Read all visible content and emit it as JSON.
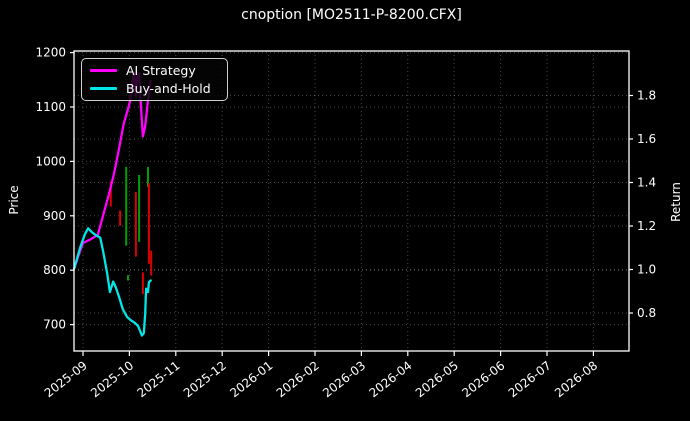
{
  "title": "cnoption [MO2511-P-8200.CFX]",
  "axes": {
    "left": {
      "label": "Price",
      "ticks": [
        1200,
        1100,
        1000,
        900,
        800,
        700
      ]
    },
    "right": {
      "label": "Return",
      "ticks": [
        1.8,
        1.6,
        1.4,
        1.2,
        1.0,
        0.8
      ]
    },
    "bottom": {
      "ticks": [
        "2025-09",
        "2025-10",
        "2025-11",
        "2025-12",
        "2026-01",
        "2026-02",
        "2026-03",
        "2026-04",
        "2026-05",
        "2026-06",
        "2026-07",
        "2026-08"
      ]
    }
  },
  "legend": {
    "items": [
      {
        "label": "AI Strategy",
        "color": "#ff00ff"
      },
      {
        "label": "Buy-and-Hold",
        "color": "#00e5e5"
      }
    ]
  },
  "colors": {
    "background": "#000000",
    "text": "#ffffff",
    "spine": "#ffffff",
    "grid": "#9a9a9a",
    "ai_line": "#ff00ff",
    "bh_line": "#00e5e5",
    "buy_signal": "#00a000",
    "sell_signal": "#dd0000"
  },
  "chart_data": {
    "type": "line",
    "title": "cnoption [MO2511-P-8200.CFX]",
    "ylabel": "Price",
    "y2label": "Return",
    "ylim": [
      652,
      1203
    ],
    "y2lim": [
      0.63,
      2.0
    ],
    "x_unit": "months after 2025-09 tick",
    "xlim": [
      -0.19,
      11.77
    ],
    "x_tick_values": [
      0,
      1,
      2,
      3,
      4,
      5,
      6,
      7,
      8,
      9,
      10,
      11
    ],
    "x_tick_labels": [
      "2025-09",
      "2025-10",
      "2025-11",
      "2025-12",
      "2026-01",
      "2026-02",
      "2026-03",
      "2026-04",
      "2026-05",
      "2026-06",
      "2026-07",
      "2026-08"
    ],
    "grid": "dotted, both y-axes and x",
    "legend_position": "upper left",
    "series": [
      {
        "name": "AI Strategy",
        "color": "#ff00ff",
        "axis": "price",
        "points": [
          [
            -0.19,
            803
          ],
          [
            -0.11,
            824
          ],
          [
            0.0,
            850
          ],
          [
            0.17,
            857
          ],
          [
            0.32,
            865
          ],
          [
            0.43,
            900
          ],
          [
            0.56,
            940
          ],
          [
            0.67,
            978
          ],
          [
            0.78,
            1025
          ],
          [
            0.88,
            1070
          ],
          [
            0.97,
            1096
          ],
          [
            1.01,
            1110
          ],
          [
            1.06,
            1145
          ],
          [
            1.1,
            1163
          ],
          [
            1.14,
            1120
          ],
          [
            1.16,
            1150
          ],
          [
            1.21,
            1162
          ],
          [
            1.25,
            1100
          ],
          [
            1.29,
            1046
          ],
          [
            1.34,
            1065
          ],
          [
            1.38,
            1095
          ],
          [
            1.42,
            1130
          ],
          [
            1.46,
            1148
          ]
        ]
      },
      {
        "name": "Buy-and-Hold",
        "color": "#00e5e5",
        "axis": "price",
        "points": [
          [
            -0.19,
            803
          ],
          [
            -0.06,
            842
          ],
          [
            0.04,
            866
          ],
          [
            0.11,
            877
          ],
          [
            0.19,
            870
          ],
          [
            0.3,
            863
          ],
          [
            0.37,
            860
          ],
          [
            0.43,
            836
          ],
          [
            0.52,
            795
          ],
          [
            0.58,
            760
          ],
          [
            0.65,
            779
          ],
          [
            0.71,
            768
          ],
          [
            0.78,
            750
          ],
          [
            0.86,
            728
          ],
          [
            0.95,
            714
          ],
          [
            1.03,
            708
          ],
          [
            1.12,
            703
          ],
          [
            1.19,
            697
          ],
          [
            1.23,
            688
          ],
          [
            1.27,
            680
          ],
          [
            1.31,
            684
          ],
          [
            1.34,
            720
          ],
          [
            1.36,
            766
          ],
          [
            1.4,
            760
          ],
          [
            1.42,
            778
          ],
          [
            1.46,
            781
          ]
        ]
      }
    ],
    "signal_bars": [
      {
        "t": 0.6,
        "price_low": 917,
        "price_high": 963,
        "kind": "sell",
        "color": "#dd0000"
      },
      {
        "t": 0.8,
        "price_low": 882,
        "price_high": 910,
        "kind": "sell",
        "color": "#dd0000"
      },
      {
        "t": 0.93,
        "price_low": 845,
        "price_high": 990,
        "kind": "buy",
        "color": "#00a000"
      },
      {
        "t": 0.97,
        "price_low": 781,
        "price_high": 791,
        "kind": "buy",
        "color": "#00a000"
      },
      {
        "t": 1.14,
        "price_low": 825,
        "price_high": 944,
        "kind": "sell",
        "color": "#dd0000"
      },
      {
        "t": 1.21,
        "price_low": 852,
        "price_high": 975,
        "kind": "buy",
        "color": "#00a000"
      },
      {
        "t": 1.29,
        "price_low": 756,
        "price_high": 796,
        "kind": "sell",
        "color": "#dd0000"
      },
      {
        "t": 1.4,
        "price_low": 953,
        "price_high": 990,
        "kind": "buy",
        "color": "#00a000"
      },
      {
        "t": 1.42,
        "price_low": 812,
        "price_high": 960,
        "kind": "sell",
        "color": "#dd0000"
      },
      {
        "t": 1.47,
        "price_low": 790,
        "price_high": 836,
        "kind": "sell",
        "color": "#dd0000"
      }
    ]
  }
}
